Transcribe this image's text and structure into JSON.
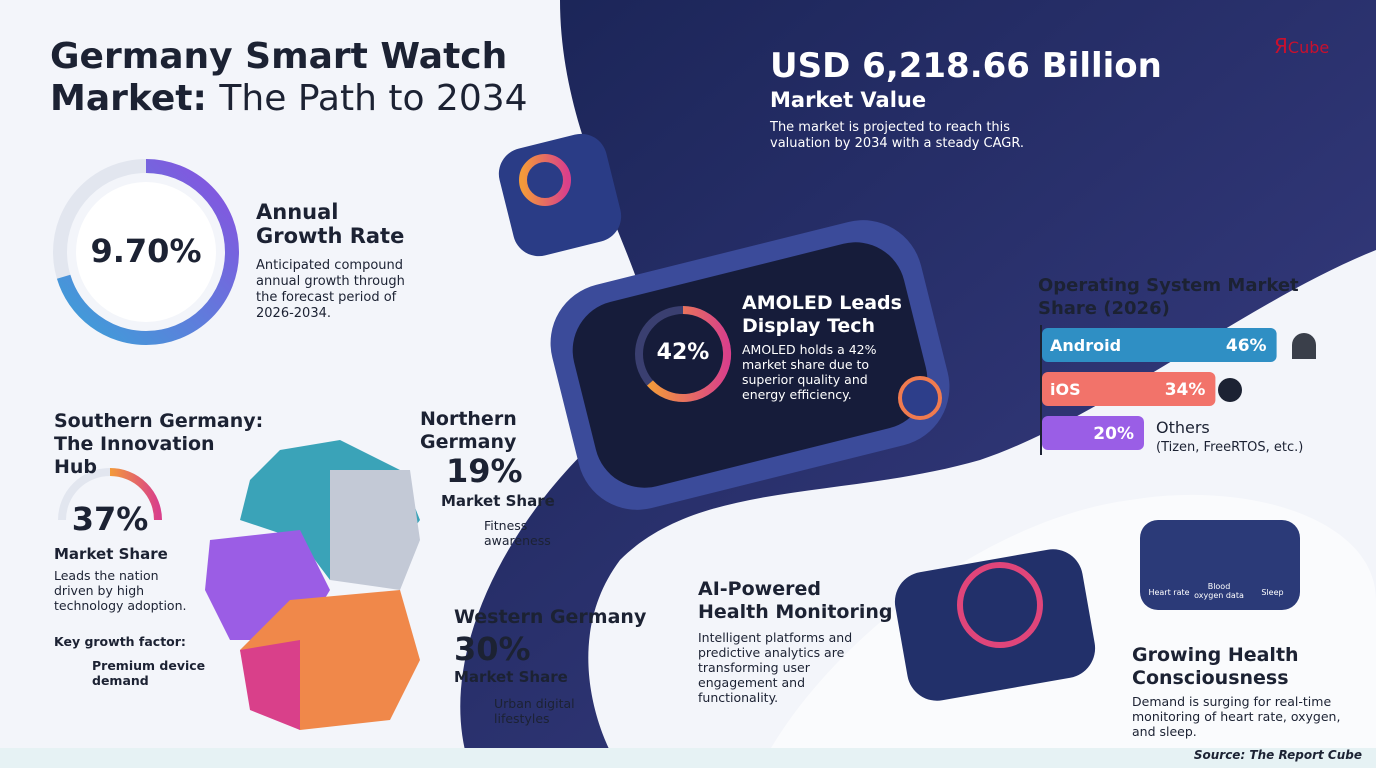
{
  "logo": {
    "mark": "Я",
    "text": "Cube"
  },
  "header": {
    "title_line1": "Germany Smart Watch",
    "title_bold": "Market:",
    "title_rest": "The Path to 2034"
  },
  "market_value": {
    "headline": "USD 6,218.66 Billion",
    "label": "Market Value",
    "description": "The market is projected to reach this valuation by 2034 with a steady CAGR."
  },
  "growth": {
    "value": "9.70%",
    "title": "Annual Growth Rate",
    "description": "Anticipated compound annual growth through the forecast period of 2026-2034."
  },
  "amoled": {
    "value": "42%",
    "title": "AMOLED Leads Display Tech",
    "description": "AMOLED holds a 42% market share due to superior quality and energy efficiency."
  },
  "regions": {
    "southern": {
      "title": "Southern Germany: The Innovation Hub",
      "value": "37%",
      "label": "Market Share",
      "description": "Leads the nation driven by high technology adoption.",
      "factor_label": "Key growth factor:",
      "factor": "Premium device demand"
    },
    "northern": {
      "name": "Northern Germany",
      "value": "19%",
      "label": "Market Share",
      "factor": "Fitness awareness"
    },
    "western": {
      "name": "Western Germany",
      "value": "30%",
      "label": "Market Share",
      "factor": "Urban digital lifestyles"
    }
  },
  "ai": {
    "title": "AI-Powered Health Monitoring",
    "description": "Intelligent platforms and predictive analytics are transforming user engagement and functionality."
  },
  "health": {
    "title": "Growing Health Consciousness",
    "description": "Demand is surging for real-time monitoring of heart rate, oxygen, and sleep.",
    "icons": [
      "Heart rate",
      "Blood oxygen data",
      "Sleep"
    ]
  },
  "source": "Source: The Report Cube",
  "chart_data": {
    "type": "bar",
    "title": "Operating System Market Share (2026)",
    "categories": [
      "Android",
      "iOS",
      "Others"
    ],
    "values": [
      46,
      34,
      20
    ],
    "value_labels": [
      "46%",
      "34%",
      "20%"
    ],
    "colors": [
      "#2f8fc4",
      "#f2736a",
      "#9a5ee6"
    ],
    "annotation": "(Tizen, FreeRTOS, etc.)"
  }
}
